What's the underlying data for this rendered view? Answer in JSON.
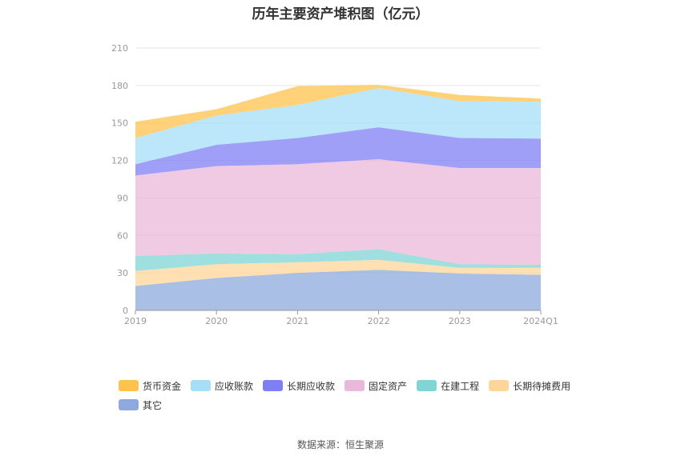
{
  "chart_data": {
    "type": "area",
    "title": "历年主要资产堆积图（亿元）",
    "source": "数据来源：恒生聚源",
    "categories": [
      "2019",
      "2020",
      "2021",
      "2022",
      "2023",
      "2024Q1"
    ],
    "ylim": [
      0,
      210
    ],
    "yticks": [
      "0",
      "30",
      "60",
      "90",
      "120",
      "150",
      "180",
      "210"
    ],
    "grid": true,
    "legend_position": "bottom",
    "series": [
      {
        "name": "其它",
        "color": "#8eaadc",
        "values": [
          19.5,
          26,
          30,
          32.5,
          29.5,
          28.5
        ]
      },
      {
        "name": "长期待摊费用",
        "color": "#ffd699",
        "values": [
          12,
          11,
          8.5,
          8,
          4.5,
          5.5
        ]
      },
      {
        "name": "在建工程",
        "color": "#80d4d4",
        "values": [
          12,
          8.5,
          6.5,
          8.5,
          3,
          2.5
        ]
      },
      {
        "name": "固定资产",
        "color": "#eab8d8",
        "values": [
          64.5,
          70,
          72,
          72,
          77,
          77.5
        ]
      },
      {
        "name": "长期应收款",
        "color": "#7f7ff5",
        "values": [
          9,
          17,
          21,
          25.5,
          24,
          23.5
        ]
      },
      {
        "name": "应收账款",
        "color": "#a6ddf7",
        "values": [
          21,
          23.5,
          26.5,
          31.5,
          29.5,
          29.5
        ]
      },
      {
        "name": "货币资金",
        "color": "#ffc34d",
        "values": [
          13,
          5,
          15,
          2.5,
          5,
          2.5
        ]
      }
    ],
    "legend_order": [
      "货币资金",
      "应收账款",
      "长期应收款",
      "固定资产",
      "在建工程",
      "长期待摊费用",
      "其它"
    ]
  }
}
